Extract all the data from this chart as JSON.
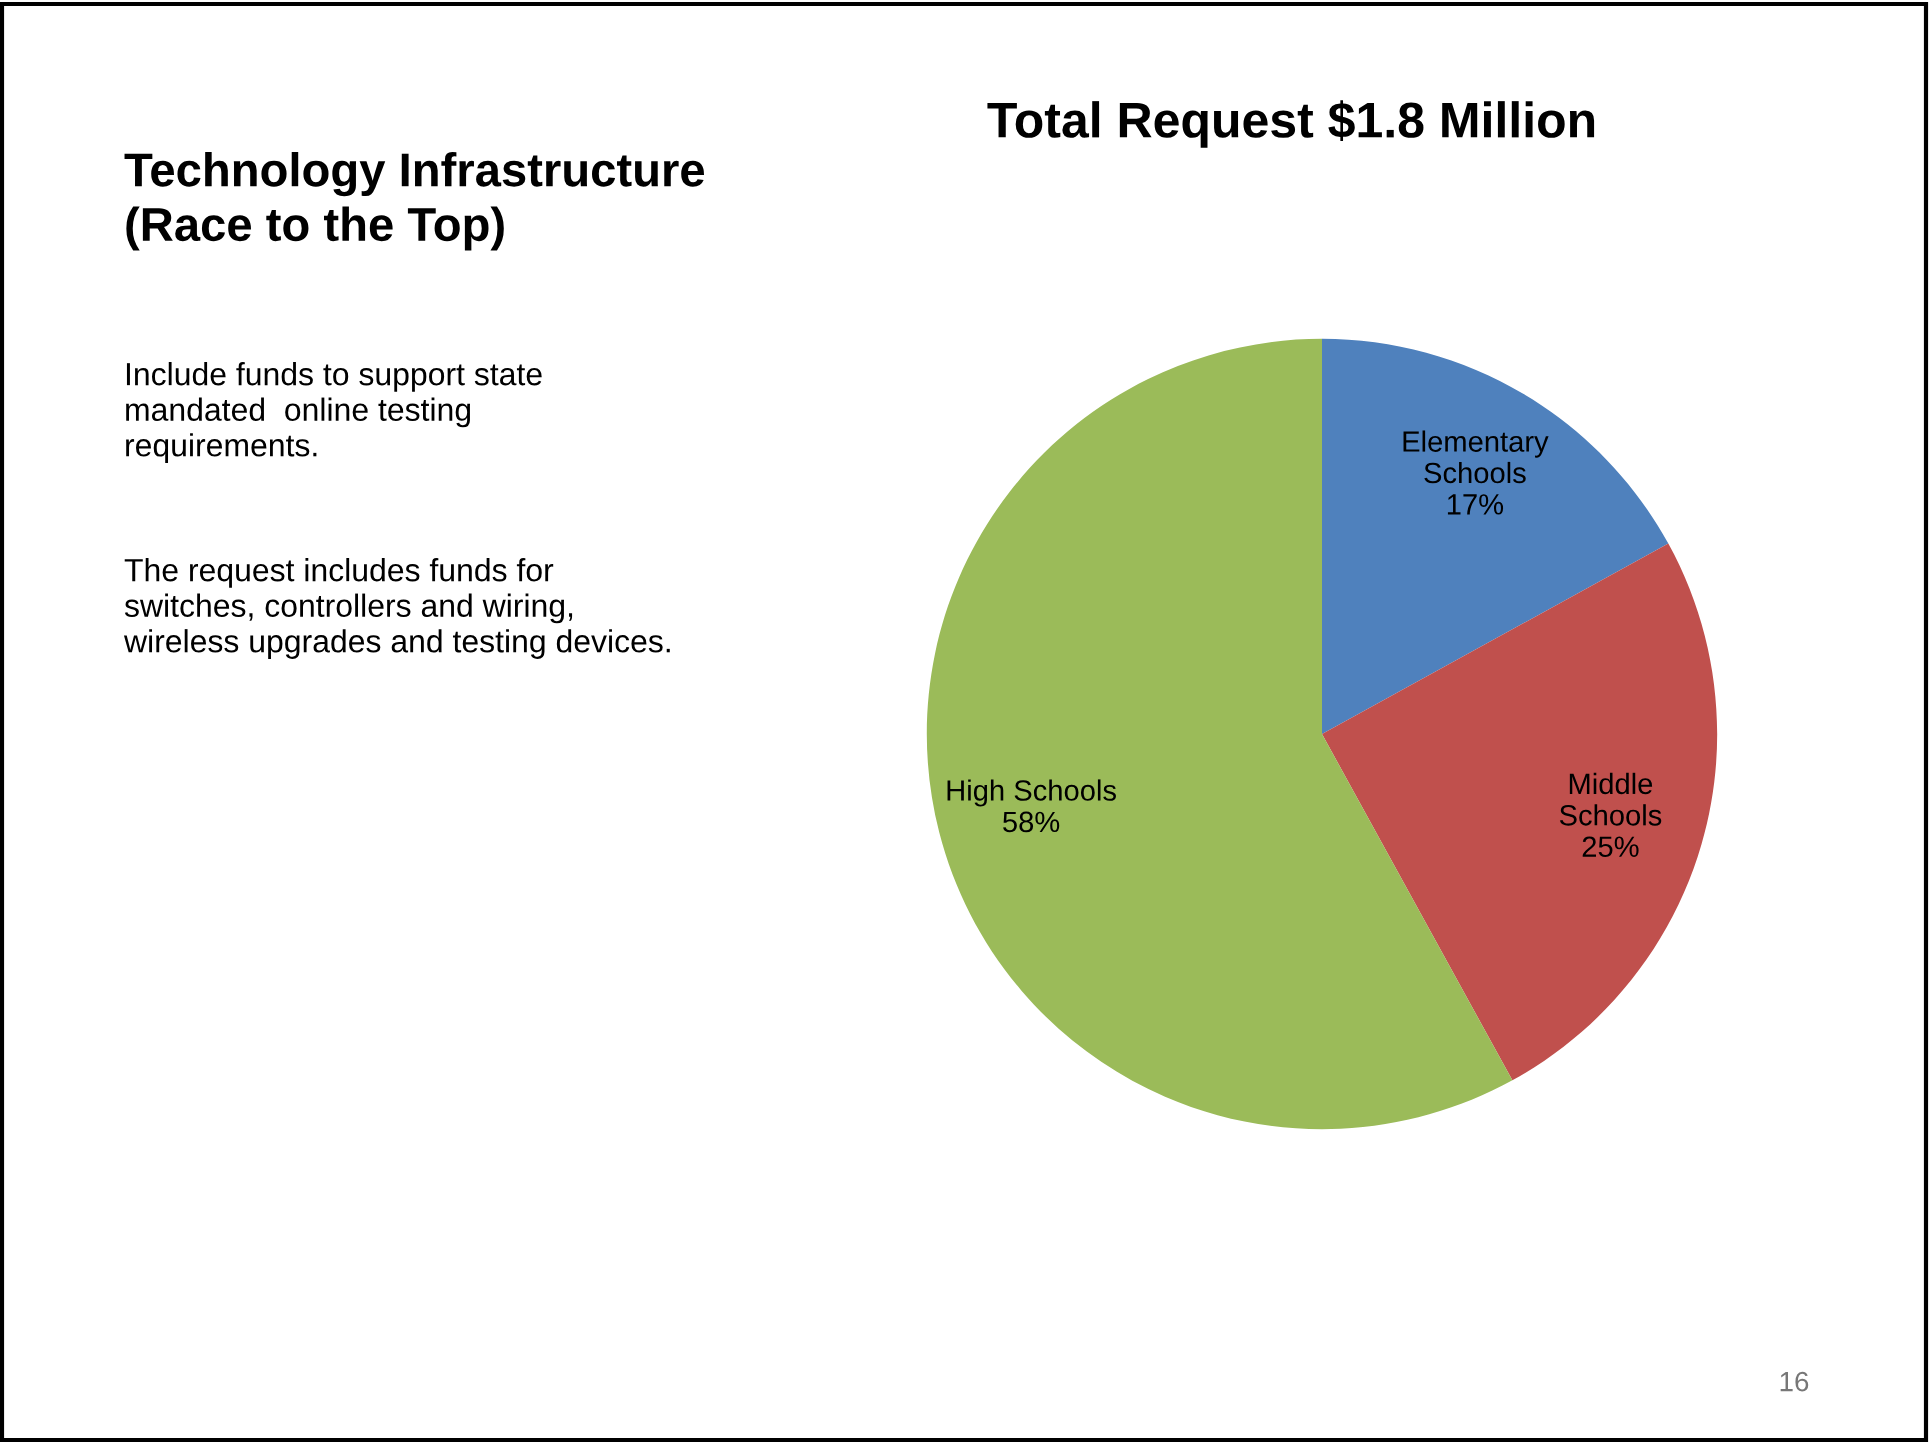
{
  "chart_data": {
    "type": "pie",
    "title": "Total Request $1.8 Million",
    "subtitle": "Technology Infrastructure\n(Race to the Top)",
    "categories": [
      "Elementary\nSchools",
      "Middle\nSchools",
      "High Schools"
    ],
    "values": [
      17,
      25,
      58
    ],
    "value_labels": [
      "17%",
      "25%",
      "58%"
    ],
    "colors": [
      "#4f81bd",
      "#c0504d",
      "#9bbb59"
    ],
    "annotations": [
      "Include funds to support state\nmandated  online testing\nrequirements.",
      "The request includes funds for\nswitches, controllers and wiring,\nwireless upgrades and testing devices.",
      "16"
    ]
  }
}
